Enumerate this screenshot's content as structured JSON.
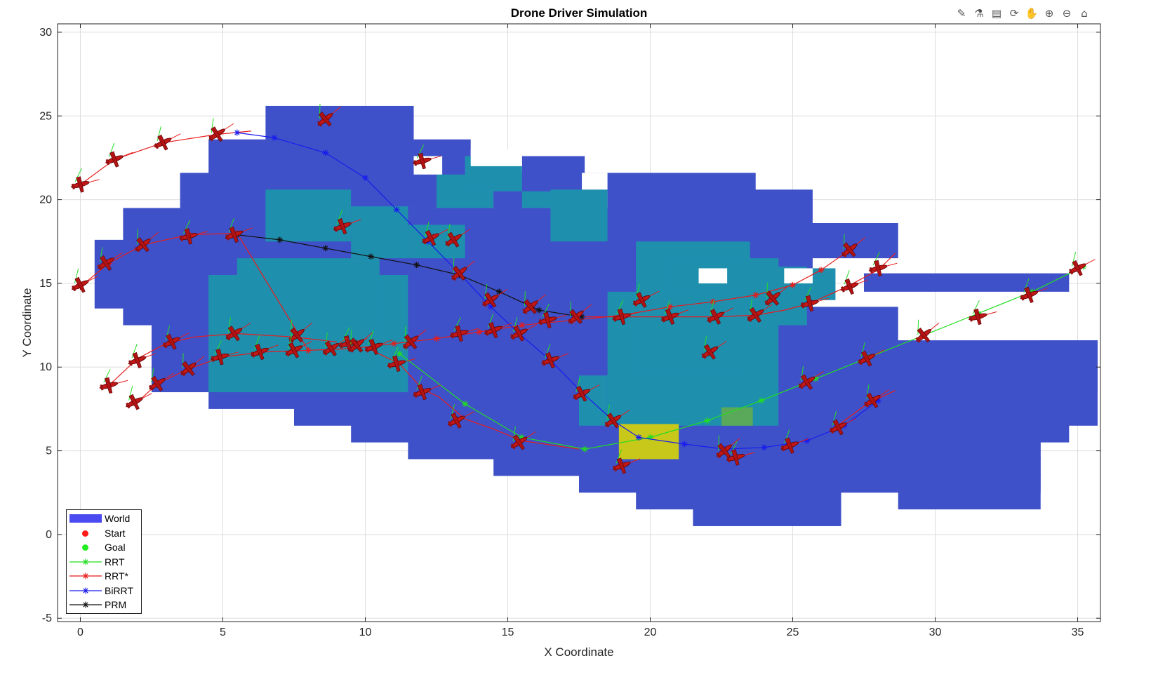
{
  "toolbar": {
    "icons": [
      {
        "name": "brush-icon",
        "glyph": "✎"
      },
      {
        "name": "data-tips-icon",
        "glyph": "⚗"
      },
      {
        "name": "insert-legend-icon",
        "glyph": "▤"
      },
      {
        "name": "rotate-3d-icon",
        "glyph": "⟳"
      },
      {
        "name": "pan-hand-icon",
        "glyph": "✋"
      },
      {
        "name": "zoom-in-icon",
        "glyph": "⊕"
      },
      {
        "name": "zoom-out-icon",
        "glyph": "⊖"
      },
      {
        "name": "home-icon",
        "glyph": "⌂"
      }
    ]
  },
  "chart_data": {
    "type": "line",
    "title": "Drone Driver Simulation",
    "xlabel": "X Coordinate",
    "ylabel": "Y Coordinate",
    "xlim": [
      -0.8,
      35.8
    ],
    "ylim": [
      -5.2,
      30.5
    ],
    "xticks": [
      0,
      5,
      10,
      15,
      20,
      25,
      30,
      35
    ],
    "yticks": [
      -5,
      0,
      5,
      10,
      15,
      20,
      25,
      30
    ],
    "grid": true,
    "legend_position": "bottom-left",
    "colors": {
      "world": "#3f51c8",
      "world_legend": "#4a4af0",
      "obstacle": "#1f8fae",
      "start": "#ff1a1a",
      "goal": "#22ee22",
      "rrt": "#22dd22",
      "rrt_star": "#e81b1b",
      "birrt": "#1a1aee",
      "prm": "#111111",
      "target_zone": "#c8c81a",
      "target_small": "#5aa85a"
    },
    "legend": [
      {
        "label": "World",
        "kind": "patch",
        "color": "#4a4af0"
      },
      {
        "label": "Start",
        "kind": "dot",
        "color": "#ff1a1a"
      },
      {
        "label": "Goal",
        "kind": "dot",
        "color": "#22ee22"
      },
      {
        "label": "RRT",
        "kind": "line",
        "color": "#22dd22"
      },
      {
        "label": "RRT*",
        "kind": "line",
        "color": "#e81b1b"
      },
      {
        "label": "BiRRT",
        "kind": "line",
        "color": "#1a1aee"
      },
      {
        "label": "PRM",
        "kind": "line",
        "color": "#111111"
      }
    ],
    "world_cells": [
      [
        6.5,
        23.5,
        11.7,
        25.6
      ],
      [
        4.5,
        21.5,
        13.7,
        23.6
      ],
      [
        3.5,
        19.5,
        17.7,
        21.6
      ],
      [
        1.5,
        16.5,
        18.7,
        19.5
      ],
      [
        0.5,
        13.5,
        22.7,
        17.6
      ],
      [
        1.5,
        12.5,
        25.7,
        16.6
      ],
      [
        2.5,
        9.5,
        28.7,
        13.6
      ],
      [
        2.5,
        8.5,
        35.7,
        11.6
      ],
      [
        4.5,
        7.5,
        34.7,
        9.6
      ],
      [
        7.5,
        6.5,
        34.7,
        8.6
      ],
      [
        9.5,
        5.5,
        34.7,
        6.6
      ],
      [
        11.5,
        4.5,
        33.7,
        5.6
      ],
      [
        14.5,
        3.5,
        33.7,
        4.6
      ],
      [
        17.5,
        2.5,
        33.7,
        3.6
      ],
      [
        19.5,
        1.5,
        26.7,
        2.6
      ],
      [
        21.5,
        0.5,
        26.7,
        1.6
      ],
      [
        18.5,
        18.5,
        25.7,
        20.6
      ],
      [
        15.5,
        20.5,
        23.7,
        21.6
      ],
      [
        15.5,
        21.5,
        17.7,
        22.6
      ],
      [
        28.7,
        1.5,
        33.7,
        5.6
      ],
      [
        33.7,
        6.5,
        35.7,
        11.6
      ],
      [
        27.5,
        14.5,
        34.7,
        15.6
      ],
      [
        12.5,
        16.5,
        28.7,
        18.6
      ]
    ],
    "world_holes": [
      [
        11.7,
        21.5,
        12.7,
        22.6
      ],
      [
        13.7,
        22.0,
        15.5,
        23.0
      ],
      [
        17.6,
        20.6,
        18.5,
        21.6
      ],
      [
        21.7,
        15.0,
        22.7,
        15.9
      ],
      [
        24.7,
        15.0,
        25.7,
        15.9
      ]
    ],
    "obstacle_cells": [
      [
        6.5,
        17.5,
        9.5,
        20.6
      ],
      [
        9.5,
        16.5,
        11.5,
        19.6
      ],
      [
        4.5,
        8.5,
        11.5,
        15.5
      ],
      [
        5.5,
        9.5,
        10.5,
        16.5
      ],
      [
        12.5,
        19.5,
        14.5,
        21.5
      ],
      [
        13.5,
        20.5,
        15.5,
        22.6
      ],
      [
        15.5,
        19.5,
        17.5,
        20.5
      ],
      [
        11.5,
        16.5,
        13.5,
        18.5
      ],
      [
        16.5,
        17.5,
        18.5,
        20.6
      ],
      [
        18.5,
        6.5,
        24.5,
        14.5
      ],
      [
        19.5,
        9.5,
        23.5,
        17.5
      ],
      [
        20.5,
        14.5,
        24.5,
        16.5
      ],
      [
        23.5,
        12.5,
        25.5,
        16.0
      ],
      [
        25.5,
        14.0,
        26.5,
        15.9
      ],
      [
        17.5,
        6.5,
        18.5,
        9.5
      ]
    ],
    "target_zone": [
      18.9,
      4.5,
      21.0,
      6.6
    ],
    "target_small": [
      22.5,
      6.5,
      23.6,
      7.6
    ],
    "series": [
      {
        "name": "RRT",
        "color": "#22dd22",
        "points": [
          [
            11.2,
            10.8
          ],
          [
            13.5,
            7.8
          ],
          [
            15.5,
            5.8
          ],
          [
            17.7,
            5.1
          ],
          [
            20.0,
            5.8
          ],
          [
            22.0,
            6.8
          ],
          [
            23.9,
            8.0
          ],
          [
            25.8,
            9.3
          ],
          [
            27.7,
            10.6
          ],
          [
            29.6,
            11.9
          ],
          [
            31.5,
            13.2
          ],
          [
            33.4,
            14.5
          ],
          [
            35.2,
            16.0
          ]
        ]
      },
      {
        "name": "RRT*",
        "color": "#e81b1b",
        "points": [
          [
            0.0,
            14.8
          ],
          [
            1.0,
            16.2
          ],
          [
            2.2,
            17.3
          ],
          [
            3.8,
            17.9
          ],
          [
            5.5,
            18.0
          ],
          [
            8.0,
            11.0
          ],
          [
            9.5,
            11.1
          ],
          [
            11.0,
            11.4
          ],
          [
            12.5,
            11.7
          ],
          [
            14.0,
            12.1
          ],
          [
            15.5,
            12.5
          ],
          [
            17.3,
            12.8
          ],
          [
            19.0,
            13.1
          ],
          [
            20.7,
            13.6
          ],
          [
            22.2,
            13.9
          ],
          [
            23.7,
            14.3
          ],
          [
            25.0,
            14.9
          ],
          [
            26.0,
            15.8
          ],
          [
            27.0,
            17.0
          ]
        ]
      },
      {
        "name": "BiRRT",
        "color": "#1a1aee",
        "points": [
          [
            5.5,
            24.0
          ],
          [
            6.8,
            23.7
          ],
          [
            8.6,
            22.8
          ],
          [
            10.0,
            21.3
          ],
          [
            11.1,
            19.4
          ],
          [
            12.2,
            17.5
          ],
          [
            13.3,
            15.6
          ],
          [
            14.4,
            13.6
          ],
          [
            15.4,
            12.0
          ],
          [
            16.5,
            10.4
          ],
          [
            17.6,
            8.5
          ],
          [
            18.7,
            6.8
          ],
          [
            19.6,
            5.8
          ],
          [
            21.2,
            5.4
          ],
          [
            22.6,
            5.1
          ],
          [
            24.0,
            5.2
          ],
          [
            25.5,
            5.6
          ],
          [
            26.8,
            6.5
          ],
          [
            28.0,
            8.0
          ]
        ]
      },
      {
        "name": "PRM",
        "color": "#111111",
        "points": [
          [
            5.5,
            17.9
          ],
          [
            7.0,
            17.6
          ],
          [
            8.6,
            17.1
          ],
          [
            10.2,
            16.6
          ],
          [
            11.8,
            16.1
          ],
          [
            13.3,
            15.5
          ],
          [
            14.7,
            14.5
          ],
          [
            16.1,
            13.4
          ],
          [
            17.6,
            13.0
          ]
        ]
      }
    ],
    "extra_red_paths": [
      [
        [
          0,
          20.9
        ],
        [
          1.2,
          22.4
        ],
        [
          2.9,
          23.4
        ],
        [
          4.8,
          23.9
        ],
        [
          6.0,
          24.1
        ]
      ],
      [
        [
          1.0,
          8.9
        ],
        [
          2.0,
          10.5
        ],
        [
          3.0,
          11.4
        ],
        [
          4.0,
          11.8
        ],
        [
          5.5,
          12.0
        ],
        [
          7.5,
          11.8
        ],
        [
          9.0,
          11.5
        ]
      ],
      [
        [
          2.0,
          7.9
        ],
        [
          2.7,
          9.0
        ],
        [
          3.8,
          9.9
        ],
        [
          5.0,
          10.6
        ],
        [
          6.4,
          10.9
        ],
        [
          8.0,
          11.0
        ]
      ],
      [
        [
          10.0,
          11.2
        ],
        [
          11.2,
          10.2
        ],
        [
          12.0,
          8.7
        ],
        [
          12.6,
          8.2
        ],
        [
          13.5,
          6.9
        ],
        [
          14.5,
          6.3
        ],
        [
          15.5,
          5.6
        ],
        [
          17.5,
          5.1
        ]
      ],
      [
        [
          17.6,
          13.0
        ],
        [
          19.0,
          13.0
        ],
        [
          20.7,
          13.0
        ],
        [
          22.3,
          13.0
        ],
        [
          23.7,
          13.1
        ],
        [
          24.7,
          13.4
        ],
        [
          25.6,
          13.8
        ],
        [
          26.9,
          14.8
        ],
        [
          28.0,
          15.8
        ],
        [
          28.6,
          16.8
        ]
      ],
      [
        [
          26.5,
          6.4
        ],
        [
          27.6,
          7.8
        ],
        [
          28.6,
          8.6
        ]
      ]
    ],
    "drones": [
      [
        0,
        20.9
      ],
      [
        1.2,
        22.4
      ],
      [
        2.9,
        23.4
      ],
      [
        4.8,
        23.9
      ],
      [
        8.6,
        24.8
      ],
      [
        12.0,
        22.3
      ],
      [
        9.2,
        18.4
      ],
      [
        0,
        14.9
      ],
      [
        0.9,
        16.2
      ],
      [
        2.2,
        17.3
      ],
      [
        3.8,
        17.8
      ],
      [
        5.4,
        17.9
      ],
      [
        12.3,
        17.7
      ],
      [
        13.1,
        17.6
      ],
      [
        13.3,
        15.6
      ],
      [
        1.0,
        8.9
      ],
      [
        2.0,
        10.4
      ],
      [
        3.2,
        11.5
      ],
      [
        5.4,
        12.0
      ],
      [
        7.6,
        11.9
      ],
      [
        9.4,
        11.4
      ],
      [
        10.3,
        11.2
      ],
      [
        1.9,
        7.9
      ],
      [
        2.7,
        9.0
      ],
      [
        3.8,
        9.9
      ],
      [
        4.9,
        10.6
      ],
      [
        6.3,
        10.9
      ],
      [
        7.5,
        11.0
      ],
      [
        8.8,
        11.1
      ],
      [
        9.7,
        11.3
      ],
      [
        11.1,
        10.2
      ],
      [
        12.0,
        8.5
      ],
      [
        13.2,
        6.8
      ],
      [
        15.4,
        5.5
      ],
      [
        11.6,
        11.5
      ],
      [
        13.3,
        12.0
      ],
      [
        14.5,
        12.2
      ],
      [
        15.4,
        12.0
      ],
      [
        14.4,
        14.0
      ],
      [
        15.8,
        13.6
      ],
      [
        16.4,
        12.8
      ],
      [
        16.5,
        10.4
      ],
      [
        17.6,
        8.4
      ],
      [
        18.7,
        6.8
      ],
      [
        17.4,
        13.0
      ],
      [
        19.0,
        13.0
      ],
      [
        20.7,
        13.0
      ],
      [
        22.3,
        13.0
      ],
      [
        23.7,
        13.1
      ],
      [
        24.3,
        14.1
      ],
      [
        25.6,
        13.8
      ],
      [
        19.0,
        4.1
      ],
      [
        19.7,
        14.0
      ],
      [
        22.1,
        10.9
      ],
      [
        22.6,
        5.0
      ],
      [
        23.0,
        4.6
      ],
      [
        24.9,
        5.3
      ],
      [
        26.6,
        6.4
      ],
      [
        27.8,
        8.0
      ],
      [
        27.0,
        17.0
      ],
      [
        28.0,
        15.9
      ],
      [
        27.0,
        14.8
      ],
      [
        27.6,
        10.5
      ],
      [
        25.5,
        9.1
      ],
      [
        29.6,
        11.9
      ],
      [
        31.5,
        13.0
      ],
      [
        33.3,
        14.3
      ],
      [
        35.0,
        15.9
      ]
    ]
  }
}
